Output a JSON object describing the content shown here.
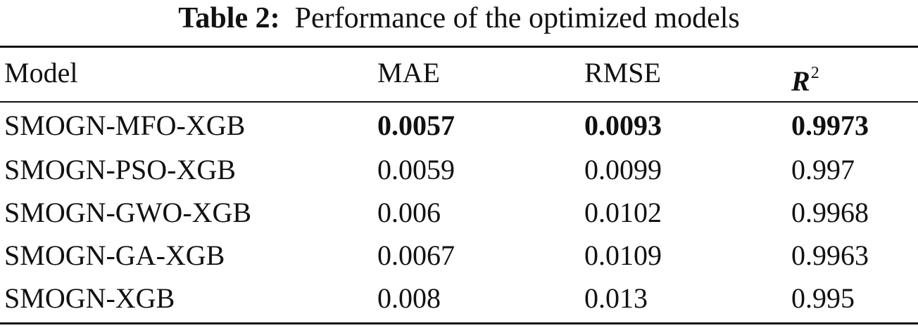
{
  "caption": {
    "label": "Table 2:",
    "title": "Performance of the optimized models"
  },
  "table": {
    "headers": {
      "model": "Model",
      "mae": "MAE",
      "rmse": "RMSE",
      "r2_symbol": "R",
      "r2_superscript": "2"
    },
    "rows": [
      {
        "model": "SMOGN-MFO-XGB",
        "mae": "0.0057",
        "rmse": "0.0093",
        "r2": "0.9973",
        "best": true
      },
      {
        "model": "SMOGN-PSO-XGB",
        "mae": "0.0059",
        "rmse": "0.0099",
        "r2": "0.997",
        "best": false
      },
      {
        "model": "SMOGN-GWO-XGB",
        "mae": "0.006",
        "rmse": "0.0102",
        "r2": "0.9968",
        "best": false
      },
      {
        "model": "SMOGN-GA-XGB",
        "mae": "0.0067",
        "rmse": "0.0109",
        "r2": "0.9963",
        "best": false
      },
      {
        "model": "SMOGN-XGB",
        "mae": "0.008",
        "rmse": "0.013",
        "r2": "0.995",
        "best": false
      }
    ]
  }
}
